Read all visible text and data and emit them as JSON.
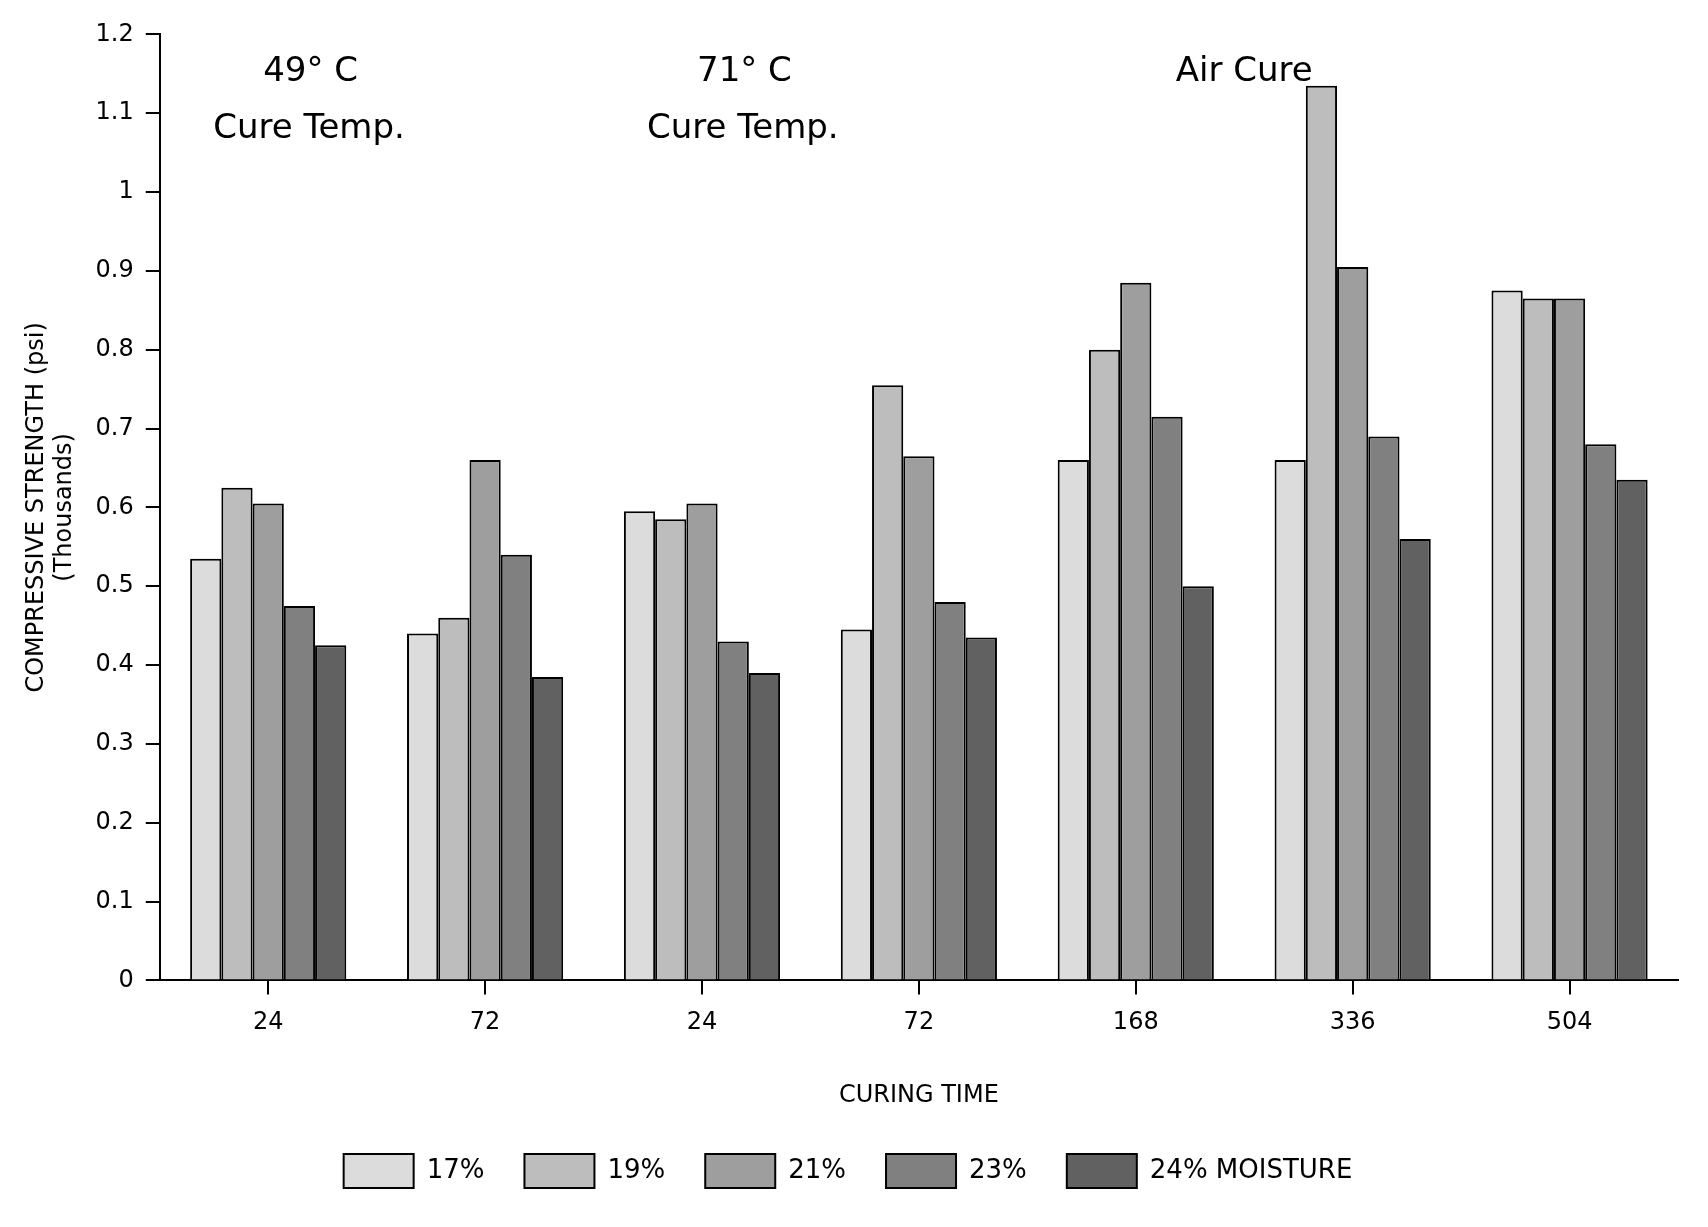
{
  "chart_data": {
    "type": "bar",
    "xlabel": "CURING TIME",
    "ylabel": "COMPRESSIVE STRENGTH (psi)\n(Thousands)",
    "categories": [
      "24",
      "72",
      "24",
      "72",
      "168",
      "336",
      "504"
    ],
    "series": [
      {
        "name": "17%",
        "color": "#dcdcdc",
        "values": [
          0.535,
          0.44,
          0.595,
          0.445,
          0.66,
          0.66,
          0.875
        ]
      },
      {
        "name": "19%",
        "color": "#bdbdbd",
        "values": [
          0.625,
          0.46,
          0.585,
          0.755,
          0.8,
          1.135,
          0.865
        ]
      },
      {
        "name": "21%",
        "color": "#9e9e9e",
        "values": [
          0.605,
          0.66,
          0.605,
          0.665,
          0.885,
          0.905,
          0.865
        ]
      },
      {
        "name": "23%",
        "color": "#808080",
        "values": [
          0.475,
          0.54,
          0.43,
          0.48,
          0.715,
          0.69,
          0.68
        ]
      },
      {
        "name": "24% MOISTURE",
        "color": "#616161",
        "values": [
          0.425,
          0.385,
          0.39,
          0.435,
          0.5,
          0.56,
          0.635
        ]
      }
    ],
    "ylim": [
      0,
      1.2
    ],
    "yticks": [
      0,
      0.1,
      0.2,
      0.3,
      0.4,
      0.5,
      0.6,
      0.7,
      0.8,
      0.9,
      1,
      1.1,
      1.2
    ],
    "grid": false,
    "legend": "bottom",
    "annotations": [
      "49° C\nCure Temp.",
      "71° C\nCure Temp.",
      "Air Cure"
    ]
  }
}
